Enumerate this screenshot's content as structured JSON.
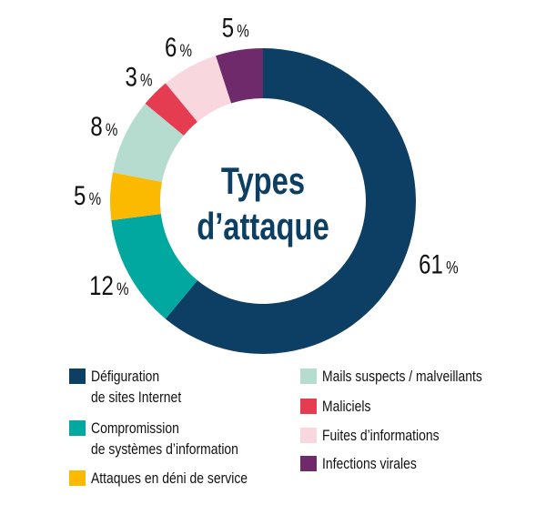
{
  "chart_data": {
    "type": "pie",
    "title": "Types d’attaque",
    "title_lines": [
      "Types",
      "d’attaque"
    ],
    "unit": "%",
    "slices": [
      {
        "label": "Défiguration de sites Internet",
        "label_lines": [
          "Défiguration",
          "de sites Internet"
        ],
        "value": 61,
        "color": "#0d3f64"
      },
      {
        "label": "Compromission de systèmes d’information",
        "label_lines": [
          "Compromission",
          "de systèmes d’information"
        ],
        "value": 12,
        "color": "#00a8a0"
      },
      {
        "label": "Attaques en déni de service",
        "label_lines": [
          "Attaques en déni de service"
        ],
        "value": 5,
        "color": "#fbb900"
      },
      {
        "label": "Mails suspects / malveillants",
        "label_lines": [
          "Mails suspects / malveillants"
        ],
        "value": 8,
        "color": "#b5dccf"
      },
      {
        "label": "Maliciels",
        "label_lines": [
          "Maliciels"
        ],
        "value": 3,
        "color": "#e53c51"
      },
      {
        "label": "Fuites d’informations",
        "label_lines": [
          "Fuites d’informations"
        ],
        "value": 6,
        "color": "#f8d8de"
      },
      {
        "label": "Infections virales",
        "label_lines": [
          "Infections virales"
        ],
        "value": 5,
        "color": "#6e2a6a"
      }
    ],
    "title_color": "#0d3f64"
  }
}
